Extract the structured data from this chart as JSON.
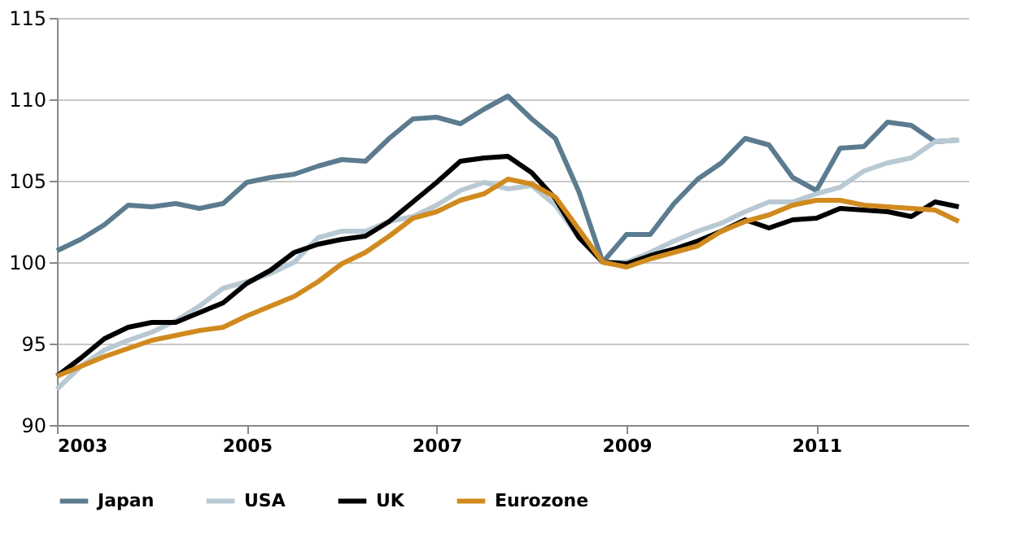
{
  "chart_data": {
    "type": "line",
    "x": [
      2003,
      2003.25,
      2003.5,
      2003.75,
      2004,
      2004.25,
      2004.5,
      2004.75,
      2005,
      2005.25,
      2005.5,
      2005.75,
      2006,
      2006.25,
      2006.5,
      2006.75,
      2007,
      2007.25,
      2007.5,
      2007.75,
      2008,
      2008.25,
      2008.5,
      2008.75,
      2009,
      2009.25,
      2009.5,
      2009.75,
      2010,
      2010.25,
      2010.5,
      2010.75,
      2011,
      2011.25,
      2011.5,
      2011.75,
      2012,
      2012.25,
      2012.5
    ],
    "series": [
      {
        "name": "Japan",
        "color": "#5b7b8f",
        "values": [
          100.7,
          101.4,
          102.3,
          103.5,
          103.4,
          103.6,
          103.3,
          103.6,
          104.9,
          105.2,
          105.4,
          105.9,
          106.3,
          106.2,
          107.6,
          108.8,
          108.9,
          108.5,
          109.4,
          110.2,
          108.8,
          107.6,
          104.3,
          100.0,
          101.7,
          101.7,
          103.6,
          105.1,
          106.1,
          107.6,
          107.2,
          105.2,
          104.4,
          107.0,
          107.1,
          108.6,
          108.4,
          107.4,
          107.5
        ]
      },
      {
        "name": "USA",
        "color": "#b9c9d3",
        "values": [
          92.2,
          93.6,
          94.6,
          95.2,
          95.7,
          96.4,
          97.3,
          98.4,
          98.8,
          99.3,
          100.0,
          101.5,
          101.9,
          101.9,
          102.5,
          102.8,
          103.5,
          104.4,
          104.9,
          104.5,
          104.7,
          103.5,
          101.5,
          100.0,
          100.0,
          100.6,
          101.3,
          101.9,
          102.4,
          103.1,
          103.7,
          103.7,
          104.2,
          104.6,
          105.6,
          106.1,
          106.4,
          107.4,
          107.5
        ]
      },
      {
        "name": "UK",
        "color": "#000000",
        "values": [
          93.0,
          94.1,
          95.3,
          96.0,
          96.3,
          96.3,
          96.9,
          97.5,
          98.7,
          99.5,
          100.6,
          101.1,
          101.4,
          101.6,
          102.5,
          103.7,
          104.9,
          106.2,
          106.4,
          106.5,
          105.5,
          103.9,
          101.5,
          100.0,
          99.9,
          100.4,
          100.8,
          101.3,
          101.9,
          102.6,
          102.1,
          102.6,
          102.7,
          103.3,
          103.2,
          103.1,
          102.8,
          103.7,
          103.4
        ]
      },
      {
        "name": "Eurozone",
        "color": "#d08a1e",
        "values": [
          93.0,
          93.6,
          94.2,
          94.7,
          95.2,
          95.5,
          95.8,
          96.0,
          96.7,
          97.3,
          97.9,
          98.8,
          99.9,
          100.6,
          101.6,
          102.7,
          103.1,
          103.8,
          104.2,
          105.1,
          104.8,
          104.0,
          102.0,
          100.0,
          99.7,
          100.2,
          100.6,
          101.0,
          101.9,
          102.5,
          102.9,
          103.5,
          103.8,
          103.8,
          103.5,
          103.4,
          103.3,
          103.2,
          102.5
        ]
      }
    ],
    "xlim": [
      2003,
      2012.6
    ],
    "xticks": [
      2003,
      2005,
      2007,
      2009,
      2011
    ],
    "ylim": [
      90,
      115
    ],
    "yticks": [
      90,
      95,
      100,
      105,
      110,
      115
    ],
    "grid": "y",
    "legend": "bottom",
    "marker": "none",
    "line_style": "solid"
  }
}
